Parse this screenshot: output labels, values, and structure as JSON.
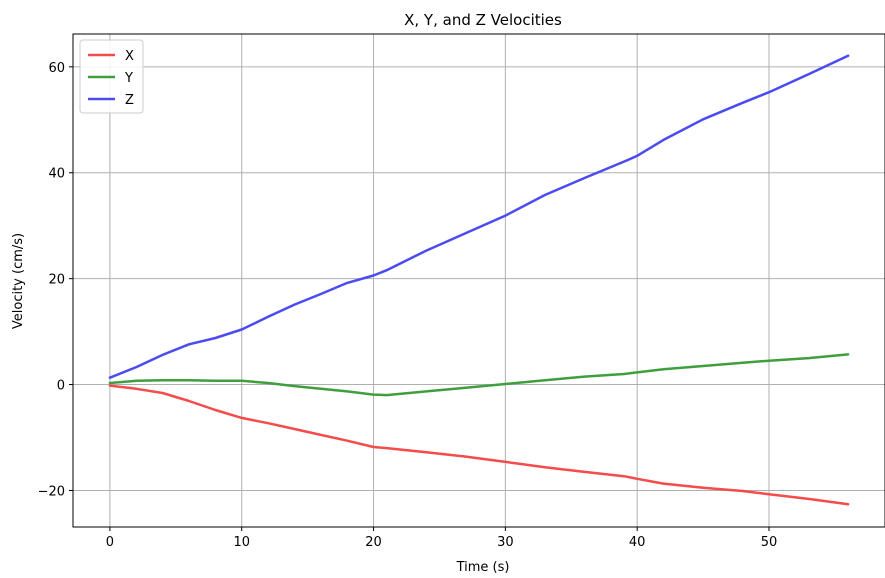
{
  "chart_data": {
    "type": "line",
    "title": "X, Y, and Z Velocities",
    "xlabel": "Time (s)",
    "ylabel": "Velocity (cm/s)",
    "xlim": [
      -2.8,
      58.8
    ],
    "ylim": [
      -26.9,
      66.2
    ],
    "xticks": [
      0,
      10,
      20,
      30,
      40,
      50
    ],
    "yticks": [
      -20,
      0,
      20,
      40,
      60
    ],
    "xtick_labels": [
      "0",
      "10",
      "20",
      "30",
      "40",
      "50"
    ],
    "ytick_labels": [
      "−20",
      "0",
      "20",
      "40",
      "60"
    ],
    "grid": true,
    "legend_position": "top-left",
    "x": [
      0,
      2,
      4,
      6,
      8,
      10,
      12,
      14,
      16,
      18,
      20,
      21,
      24,
      27,
      30,
      33,
      36,
      39,
      40,
      42,
      45,
      48,
      50,
      53,
      56
    ],
    "series": [
      {
        "name": "X",
        "color": "#f44b4b",
        "values": [
          -0.2,
          -0.8,
          -1.6,
          -3.1,
          -4.8,
          -6.3,
          -7.3,
          -8.4,
          -9.5,
          -10.6,
          -11.8,
          -12.0,
          -12.8,
          -13.6,
          -14.6,
          -15.6,
          -16.5,
          -17.3,
          -17.8,
          -18.7,
          -19.5,
          -20.1,
          -20.7,
          -21.6,
          -22.6
        ]
      },
      {
        "name": "Y",
        "color": "#3f9f3f",
        "values": [
          0.3,
          0.7,
          0.8,
          0.8,
          0.7,
          0.7,
          0.3,
          -0.3,
          -0.8,
          -1.3,
          -1.9,
          -2.0,
          -1.3,
          -0.6,
          0.1,
          0.8,
          1.5,
          2.0,
          2.3,
          2.9,
          3.5,
          4.1,
          4.5,
          5.0,
          5.7
        ]
      },
      {
        "name": "Z",
        "color": "#4b4bf4",
        "values": [
          1.3,
          3.3,
          5.6,
          7.6,
          8.8,
          10.4,
          12.8,
          15.1,
          17.1,
          19.2,
          20.6,
          21.6,
          25.3,
          28.6,
          31.9,
          35.8,
          39.0,
          42.1,
          43.2,
          46.2,
          50.1,
          53.2,
          55.2,
          58.6,
          62.1
        ]
      }
    ]
  }
}
